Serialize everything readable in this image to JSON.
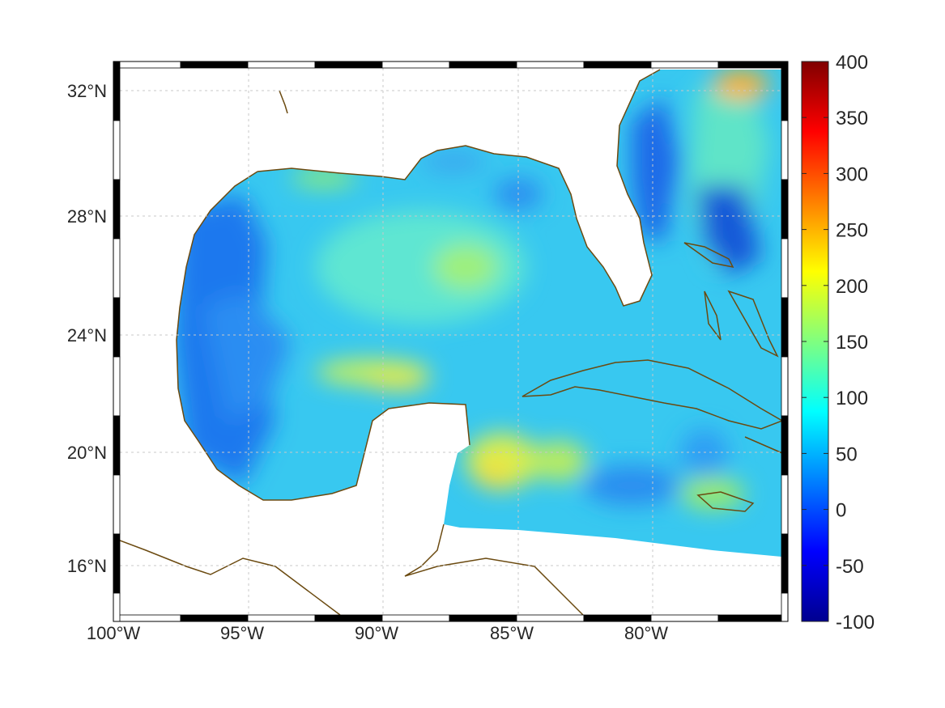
{
  "map": {
    "lon_labels": [
      "100°W",
      "95°W",
      "90°W",
      "85°W",
      "80°W"
    ],
    "lat_labels": [
      "32°N",
      "28°N",
      "24°N",
      "20°N",
      "16°N"
    ],
    "lon_range": [
      -100,
      -75
    ],
    "lat_range": [
      14.5,
      33
    ],
    "grid": true,
    "coastline_color": "#6b4a10",
    "frame_colors": [
      "#000000",
      "#ffffff"
    ]
  },
  "colorbar": {
    "colormap": "jet",
    "range": [
      -100,
      400
    ],
    "ticks": [
      "400",
      "350",
      "300",
      "250",
      "200",
      "150",
      "100",
      "50",
      "0",
      "-50",
      "-100"
    ]
  }
}
